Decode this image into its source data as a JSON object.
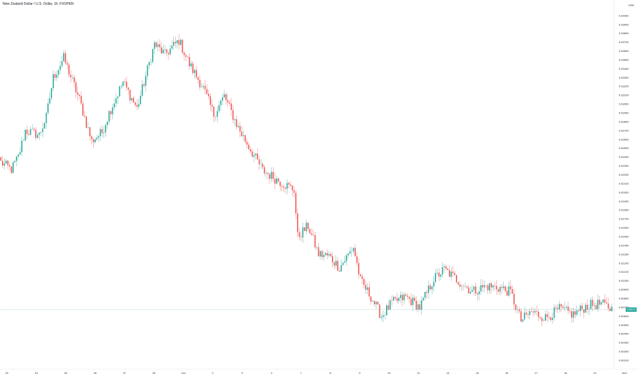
{
  "header": {
    "symbol_title": "New Zealand Dollar / U.S. Dollar, 1h, FXOPEN",
    "currency": "USD"
  },
  "colors": {
    "up": "#26a69a",
    "down": "#ef5350",
    "current_price_line": "#26a69a",
    "axis_text": "#2a2e39",
    "border": "#e0e3eb"
  },
  "chart_data": {
    "type": "candlestick",
    "title": "New Zealand Dollar / U.S. Dollar, 1h, FXOPEN",
    "y_axis_position": "right",
    "y_unit": "USD",
    "ylim": [
      0.6,
      0.641
    ],
    "y_ticks": [
      "0.64000",
      "0.63900",
      "0.63800",
      "0.63700",
      "0.63600",
      "0.63500",
      "0.63400",
      "0.63300",
      "0.63200",
      "0.63100",
      "0.63000",
      "0.62900",
      "0.62800",
      "0.62700",
      "0.62600",
      "0.62500",
      "0.62400",
      "0.62300",
      "0.62200",
      "0.62100",
      "0.62000",
      "0.61900",
      "0.61800",
      "0.61700",
      "0.61600",
      "0.61500",
      "0.61400",
      "0.61300",
      "0.61200",
      "0.61100",
      "0.61000",
      "0.60900",
      "0.60800",
      "0.60700",
      "0.60600",
      "0.60500",
      "0.60400",
      "0.60300",
      "0.60200",
      "0.60100"
    ],
    "x_ticks": [
      "23",
      "24",
      "25",
      "26",
      "27",
      "30",
      "Oct",
      "2",
      "3",
      "4",
      "7",
      "8",
      "9",
      "10",
      "11",
      "14",
      "15",
      "16",
      "17",
      "18",
      "21",
      "18:0"
    ],
    "current_price": 0.60674,
    "current_price_label": "0.60674",
    "grid": false,
    "path_keyframes": [
      {
        "t": 0,
        "v": 0.6234
      },
      {
        "t": 6,
        "v": 0.6226
      },
      {
        "t": 10,
        "v": 0.624
      },
      {
        "t": 14,
        "v": 0.627
      },
      {
        "t": 22,
        "v": 0.6265
      },
      {
        "t": 26,
        "v": 0.6285
      },
      {
        "t": 30,
        "v": 0.633
      },
      {
        "t": 36,
        "v": 0.6352
      },
      {
        "t": 45,
        "v": 0.6305
      },
      {
        "t": 52,
        "v": 0.6258
      },
      {
        "t": 58,
        "v": 0.6268
      },
      {
        "t": 62,
        "v": 0.629
      },
      {
        "t": 70,
        "v": 0.6325
      },
      {
        "t": 78,
        "v": 0.6295
      },
      {
        "t": 88,
        "v": 0.6368
      },
      {
        "t": 94,
        "v": 0.6356
      },
      {
        "t": 102,
        "v": 0.6372
      },
      {
        "t": 108,
        "v": 0.6345
      },
      {
        "t": 116,
        "v": 0.6318
      },
      {
        "t": 122,
        "v": 0.6288
      },
      {
        "t": 128,
        "v": 0.6309
      },
      {
        "t": 136,
        "v": 0.6273
      },
      {
        "t": 144,
        "v": 0.6245
      },
      {
        "t": 150,
        "v": 0.6225
      },
      {
        "t": 160,
        "v": 0.6212
      },
      {
        "t": 168,
        "v": 0.6203
      },
      {
        "t": 170,
        "v": 0.615
      },
      {
        "t": 176,
        "v": 0.6162
      },
      {
        "t": 182,
        "v": 0.613
      },
      {
        "t": 188,
        "v": 0.6128
      },
      {
        "t": 194,
        "v": 0.6115
      },
      {
        "t": 202,
        "v": 0.6138
      },
      {
        "t": 206,
        "v": 0.61
      },
      {
        "t": 212,
        "v": 0.6082
      },
      {
        "t": 218,
        "v": 0.606
      },
      {
        "t": 224,
        "v": 0.6075
      },
      {
        "t": 232,
        "v": 0.6082
      },
      {
        "t": 240,
        "v": 0.607
      },
      {
        "t": 248,
        "v": 0.6102
      },
      {
        "t": 254,
        "v": 0.6113
      },
      {
        "t": 262,
        "v": 0.61
      },
      {
        "t": 270,
        "v": 0.6088
      },
      {
        "t": 278,
        "v": 0.6094
      },
      {
        "t": 286,
        "v": 0.6092
      },
      {
        "t": 292,
        "v": 0.6087
      },
      {
        "t": 298,
        "v": 0.6055
      },
      {
        "t": 304,
        "v": 0.6065
      },
      {
        "t": 312,
        "v": 0.6058
      },
      {
        "t": 320,
        "v": 0.6068
      },
      {
        "t": 328,
        "v": 0.6062
      },
      {
        "t": 336,
        "v": 0.6072
      },
      {
        "t": 344,
        "v": 0.6074
      },
      {
        "t": 350,
        "v": 0.6068
      }
    ]
  }
}
